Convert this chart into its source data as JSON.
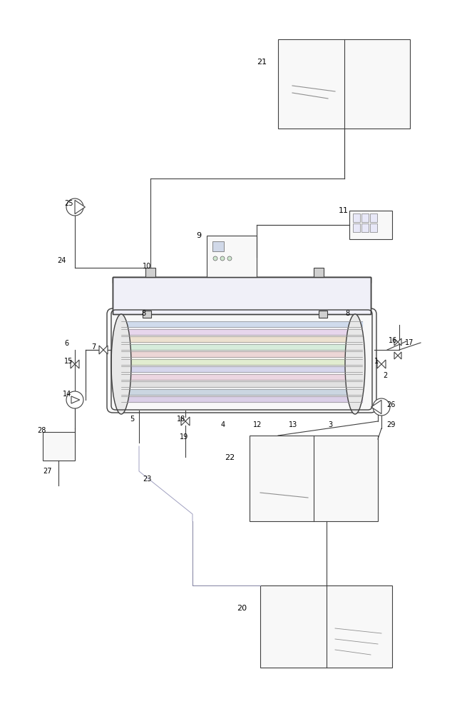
{
  "bg_color": "#ffffff",
  "line_color": "#404040",
  "line_color_thin": "#808080",
  "membrane_colors": [
    "#c8e0f0",
    "#e0c8f0",
    "#f0e0c8",
    "#c8f0e0",
    "#f0c8c8",
    "#e0f0c8",
    "#c8c8f0",
    "#f0c8e0",
    "#e8e8e8"
  ],
  "figsize": [
    6.48,
    10.0
  ],
  "dpi": 100
}
